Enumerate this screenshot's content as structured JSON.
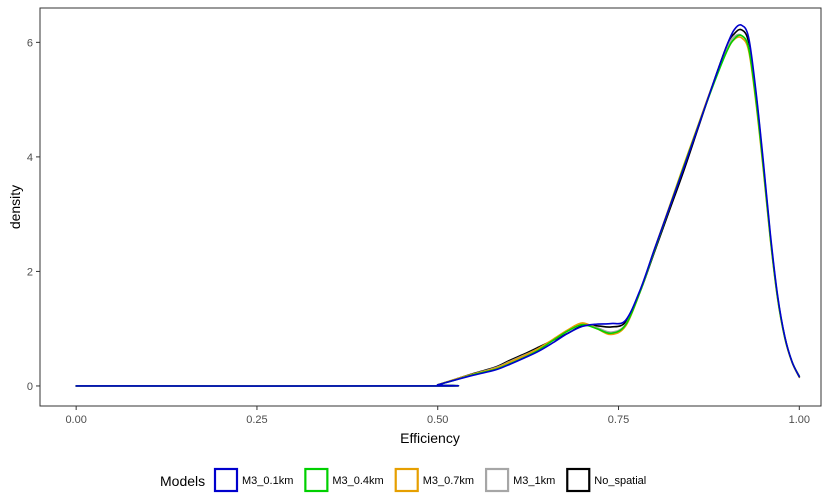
{
  "chart_data": {
    "type": "line",
    "title": "",
    "xlabel": "Efficiency",
    "ylabel": "density",
    "xlim": [
      -0.05,
      1.03
    ],
    "ylim": [
      -0.35,
      6.6
    ],
    "x_ticks": [
      0.0,
      0.25,
      0.5,
      0.75,
      1.0
    ],
    "x_tick_labels": [
      "0.00",
      "0.25",
      "0.50",
      "0.75",
      "1.00"
    ],
    "y_ticks": [
      0,
      2,
      4,
      6
    ],
    "y_tick_labels": [
      "0",
      "2",
      "4",
      "6"
    ],
    "grid": false,
    "legend": {
      "title": "Models",
      "position": "bottom"
    },
    "series": [
      {
        "name": "No_spatial",
        "color": "#000000",
        "x": [
          0.0,
          0.49,
          0.5,
          0.52,
          0.55,
          0.58,
          0.6,
          0.62,
          0.64,
          0.66,
          0.68,
          0.7,
          0.72,
          0.74,
          0.76,
          0.78,
          0.8,
          0.82,
          0.84,
          0.86,
          0.88,
          0.9,
          0.91,
          0.92,
          0.93,
          0.94,
          0.95,
          0.96,
          0.97,
          0.98,
          0.99,
          1.0
        ],
        "y": [
          0.0,
          0.0,
          0.02,
          0.1,
          0.22,
          0.33,
          0.45,
          0.56,
          0.68,
          0.8,
          0.92,
          1.05,
          1.05,
          1.03,
          1.12,
          1.65,
          2.35,
          3.05,
          3.75,
          4.5,
          5.25,
          5.95,
          6.15,
          6.22,
          6.0,
          5.1,
          3.9,
          2.6,
          1.55,
          0.85,
          0.42,
          0.17
        ]
      },
      {
        "name": "M3_1km",
        "color": "#a6a6a6",
        "x": [
          0.0,
          0.49,
          0.5,
          0.52,
          0.55,
          0.58,
          0.6,
          0.62,
          0.64,
          0.66,
          0.68,
          0.7,
          0.72,
          0.74,
          0.76,
          0.78,
          0.8,
          0.82,
          0.84,
          0.86,
          0.88,
          0.9,
          0.91,
          0.92,
          0.93,
          0.94,
          0.95,
          0.96,
          0.97,
          0.98,
          0.99,
          1.0
        ],
        "y": [
          0.0,
          0.0,
          0.02,
          0.1,
          0.21,
          0.32,
          0.43,
          0.54,
          0.66,
          0.8,
          0.96,
          1.08,
          1.02,
          0.94,
          1.08,
          1.65,
          2.38,
          3.1,
          3.82,
          4.55,
          5.25,
          5.9,
          6.1,
          6.12,
          5.9,
          5.0,
          3.85,
          2.6,
          1.55,
          0.85,
          0.42,
          0.16
        ]
      },
      {
        "name": "M3_0.7km",
        "color": "#e69f00",
        "x": [
          0.0,
          0.49,
          0.5,
          0.52,
          0.55,
          0.58,
          0.6,
          0.62,
          0.64,
          0.66,
          0.68,
          0.7,
          0.72,
          0.74,
          0.76,
          0.78,
          0.8,
          0.82,
          0.84,
          0.86,
          0.88,
          0.9,
          0.91,
          0.92,
          0.93,
          0.94,
          0.95,
          0.96,
          0.97,
          0.98,
          0.99,
          1.0
        ],
        "y": [
          0.0,
          0.0,
          0.02,
          0.1,
          0.21,
          0.31,
          0.42,
          0.53,
          0.66,
          0.82,
          0.98,
          1.1,
          1.0,
          0.9,
          1.05,
          1.65,
          2.4,
          3.12,
          3.85,
          4.55,
          5.25,
          5.85,
          6.05,
          6.08,
          5.85,
          4.95,
          3.8,
          2.55,
          1.52,
          0.83,
          0.41,
          0.15
        ]
      },
      {
        "name": "M3_0.4km",
        "color": "#00d000",
        "x": [
          0.0,
          0.49,
          0.5,
          0.52,
          0.55,
          0.58,
          0.6,
          0.62,
          0.64,
          0.66,
          0.68,
          0.7,
          0.72,
          0.74,
          0.76,
          0.78,
          0.8,
          0.82,
          0.84,
          0.86,
          0.88,
          0.9,
          0.91,
          0.92,
          0.93,
          0.94,
          0.95,
          0.96,
          0.97,
          0.98,
          0.99,
          1.0
        ],
        "y": [
          0.0,
          0.0,
          0.02,
          0.09,
          0.2,
          0.29,
          0.39,
          0.5,
          0.63,
          0.8,
          0.96,
          1.07,
          1.0,
          0.92,
          1.07,
          1.65,
          2.38,
          3.1,
          3.82,
          4.53,
          5.22,
          5.85,
          6.06,
          6.12,
          5.9,
          5.0,
          3.85,
          2.58,
          1.54,
          0.84,
          0.42,
          0.16
        ]
      },
      {
        "name": "M3_0.1km",
        "color": "#0000cd",
        "x": [
          0.0,
          0.49,
          0.5,
          0.52,
          0.55,
          0.58,
          0.6,
          0.62,
          0.64,
          0.66,
          0.68,
          0.7,
          0.72,
          0.74,
          0.76,
          0.78,
          0.8,
          0.82,
          0.84,
          0.86,
          0.88,
          0.9,
          0.91,
          0.92,
          0.93,
          0.94,
          0.95,
          0.96,
          0.97,
          0.98,
          0.99,
          1.0
        ],
        "y": [
          0.0,
          0.0,
          0.02,
          0.09,
          0.19,
          0.28,
          0.38,
          0.49,
          0.61,
          0.76,
          0.92,
          1.04,
          1.08,
          1.09,
          1.15,
          1.68,
          2.4,
          3.1,
          3.8,
          4.52,
          5.25,
          5.95,
          6.22,
          6.3,
          6.08,
          5.15,
          3.95,
          2.65,
          1.58,
          0.86,
          0.42,
          0.16
        ]
      }
    ]
  },
  "legend_order": [
    "M3_0.1km",
    "M3_0.4km",
    "M3_0.7km",
    "M3_1km",
    "No_spatial"
  ]
}
